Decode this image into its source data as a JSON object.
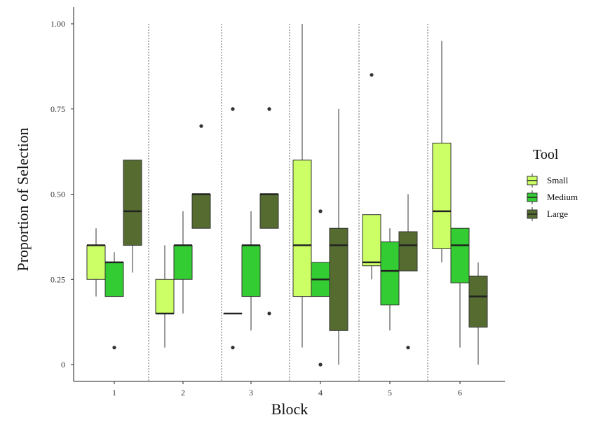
{
  "chart_data": {
    "type": "boxplot",
    "xlabel": "Block",
    "ylabel": "Proportion of Selection",
    "ylim": [
      0,
      1
    ],
    "y_ticks": [
      0,
      0.25,
      0.5,
      0.75,
      1.0
    ],
    "y_tick_labels": [
      "0",
      "0.25",
      "0.50",
      "0.75",
      "1.00"
    ],
    "categories": [
      "1",
      "2",
      "3",
      "4",
      "5",
      "6"
    ],
    "legend": {
      "title": "Tool",
      "position": "right",
      "items": [
        {
          "name": "Small",
          "color": "#ccff66"
        },
        {
          "name": "Medium",
          "color": "#33cc33"
        },
        {
          "name": "Large",
          "color": "#556b2f"
        }
      ]
    },
    "series": [
      {
        "name": "Small",
        "color": "#ccff66",
        "boxes": [
          {
            "block": "1",
            "whisker_low": 0.2,
            "q1": 0.25,
            "median": 0.35,
            "q3": 0.35,
            "whisker_high": 0.4,
            "outliers": []
          },
          {
            "block": "2",
            "whisker_low": 0.05,
            "q1": 0.15,
            "median": 0.15,
            "q3": 0.25,
            "whisker_high": 0.35,
            "outliers": []
          },
          {
            "block": "3",
            "whisker_low": 0.15,
            "q1": 0.15,
            "median": 0.15,
            "q3": 0.15,
            "whisker_high": 0.15,
            "outliers": [
              0.05,
              0.75
            ]
          },
          {
            "block": "4",
            "whisker_low": 0.05,
            "q1": 0.2,
            "median": 0.35,
            "q3": 0.6,
            "whisker_high": 1.0,
            "outliers": []
          },
          {
            "block": "5",
            "whisker_low": 0.25,
            "q1": 0.29,
            "median": 0.3,
            "q3": 0.44,
            "whisker_high": 0.44,
            "outliers": [
              0.85
            ]
          },
          {
            "block": "6",
            "whisker_low": 0.3,
            "q1": 0.34,
            "median": 0.45,
            "q3": 0.65,
            "whisker_high": 0.95,
            "outliers": []
          }
        ]
      },
      {
        "name": "Medium",
        "color": "#33cc33",
        "boxes": [
          {
            "block": "1",
            "whisker_low": 0.2,
            "q1": 0.2,
            "median": 0.3,
            "q3": 0.3,
            "whisker_high": 0.33,
            "outliers": [
              0.05
            ]
          },
          {
            "block": "2",
            "whisker_low": 0.15,
            "q1": 0.25,
            "median": 0.35,
            "q3": 0.35,
            "whisker_high": 0.45,
            "outliers": []
          },
          {
            "block": "3",
            "whisker_low": 0.1,
            "q1": 0.2,
            "median": 0.35,
            "q3": 0.35,
            "whisker_high": 0.45,
            "outliers": []
          },
          {
            "block": "4",
            "whisker_low": 0.2,
            "q1": 0.2,
            "median": 0.25,
            "q3": 0.3,
            "whisker_high": 0.3,
            "outliers": [
              0.0,
              0.45
            ]
          },
          {
            "block": "5",
            "whisker_low": 0.1,
            "q1": 0.175,
            "median": 0.275,
            "q3": 0.36,
            "whisker_high": 0.4,
            "outliers": []
          },
          {
            "block": "6",
            "whisker_low": 0.05,
            "q1": 0.24,
            "median": 0.35,
            "q3": 0.4,
            "whisker_high": 0.4,
            "outliers": []
          }
        ]
      },
      {
        "name": "Large",
        "color": "#556b2f",
        "boxes": [
          {
            "block": "1",
            "whisker_low": 0.27,
            "q1": 0.35,
            "median": 0.45,
            "q3": 0.6,
            "whisker_high": 0.6,
            "outliers": []
          },
          {
            "block": "2",
            "whisker_low": 0.4,
            "q1": 0.4,
            "median": 0.5,
            "q3": 0.5,
            "whisker_high": 0.5,
            "outliers": [
              0.7
            ]
          },
          {
            "block": "3",
            "whisker_low": 0.4,
            "q1": 0.4,
            "median": 0.5,
            "q3": 0.5,
            "whisker_high": 0.5,
            "outliers": [
              0.15,
              0.75
            ]
          },
          {
            "block": "4",
            "whisker_low": 0.0,
            "q1": 0.1,
            "median": 0.35,
            "q3": 0.4,
            "whisker_high": 0.75,
            "outliers": []
          },
          {
            "block": "5",
            "whisker_low": 0.275,
            "q1": 0.275,
            "median": 0.35,
            "q3": 0.39,
            "whisker_high": 0.5,
            "outliers": [
              0.05
            ]
          },
          {
            "block": "6",
            "whisker_low": 0.0,
            "q1": 0.11,
            "median": 0.2,
            "q3": 0.26,
            "whisker_high": 0.3,
            "outliers": []
          }
        ]
      }
    ]
  }
}
